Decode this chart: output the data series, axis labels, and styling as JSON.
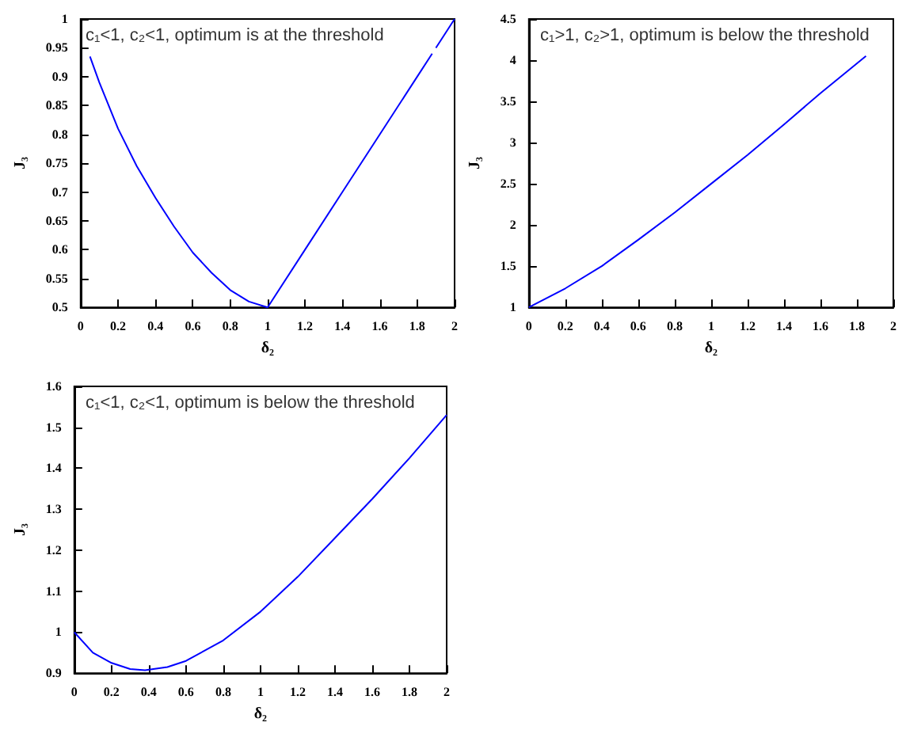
{
  "chart_data": [
    {
      "type": "line",
      "xlabel": "δ₂",
      "ylabel": "J₃",
      "annotations": [
        "c₁<1, c₂<1, optimum is at the threshold"
      ],
      "color": "#0000ff",
      "grid": false,
      "x": [
        0.05,
        0.1,
        0.2,
        0.3,
        0.4,
        0.5,
        0.6,
        0.7,
        0.8,
        0.9,
        1.0,
        1.2,
        1.4,
        1.6,
        1.8,
        1.88,
        1.89,
        1.9,
        2.0
      ],
      "values": [
        0.935,
        0.89,
        0.81,
        0.745,
        0.69,
        0.64,
        0.595,
        0.56,
        0.53,
        0.51,
        0.5,
        0.6,
        0.7,
        0.8,
        0.9,
        0.94,
        null,
        0.95,
        1.0
      ],
      "xlim": [
        0,
        2
      ],
      "ylim": [
        0.5,
        1
      ],
      "xticks": [
        0,
        0.2,
        0.4,
        0.6,
        0.8,
        1,
        1.2,
        1.4,
        1.6,
        1.8,
        2
      ],
      "yticks": [
        0.5,
        0.55,
        0.6,
        0.65,
        0.7,
        0.75,
        0.8,
        0.85,
        0.9,
        0.95,
        1
      ]
    },
    {
      "type": "line",
      "xlabel": "δ₂",
      "ylabel": "J₃",
      "annotations": [
        "c₁>1, c₂>1, optimum is below the threshold"
      ],
      "color": "#0000ff",
      "grid": false,
      "x": [
        0,
        0.2,
        0.4,
        0.6,
        0.8,
        1.0,
        1.2,
        1.4,
        1.6,
        1.85
      ],
      "values": [
        1,
        1.23,
        1.5,
        1.82,
        2.15,
        2.5,
        2.85,
        3.22,
        3.6,
        4.05
      ],
      "xlim": [
        0,
        2
      ],
      "ylim": [
        1,
        4.5
      ],
      "xticks": [
        0,
        0.2,
        0.4,
        0.6,
        0.8,
        1,
        1.2,
        1.4,
        1.6,
        1.8,
        2
      ],
      "yticks": [
        1,
        1.5,
        2,
        2.5,
        3,
        3.5,
        4,
        4.5
      ]
    },
    {
      "type": "line",
      "xlabel": "δ₂",
      "ylabel": "J₃",
      "annotations": [
        "c₁<1, c₂<1, optimum is below the threshold"
      ],
      "color": "#0000ff",
      "grid": false,
      "x": [
        0,
        0.1,
        0.2,
        0.3,
        0.38,
        0.5,
        0.6,
        0.8,
        1.0,
        1.2,
        1.4,
        1.6,
        1.8,
        2.0
      ],
      "values": [
        1.0,
        0.95,
        0.925,
        0.91,
        0.907,
        0.915,
        0.93,
        0.98,
        1.05,
        1.135,
        1.23,
        1.325,
        1.425,
        1.53
      ],
      "xlim": [
        0,
        2
      ],
      "ylim": [
        0.9,
        1.6
      ],
      "xticks": [
        0,
        0.2,
        0.4,
        0.6,
        0.8,
        1,
        1.2,
        1.4,
        1.6,
        1.8,
        2
      ],
      "yticks": [
        0.9,
        1,
        1.1,
        1.2,
        1.3,
        1.4,
        1.5,
        1.6
      ]
    }
  ]
}
